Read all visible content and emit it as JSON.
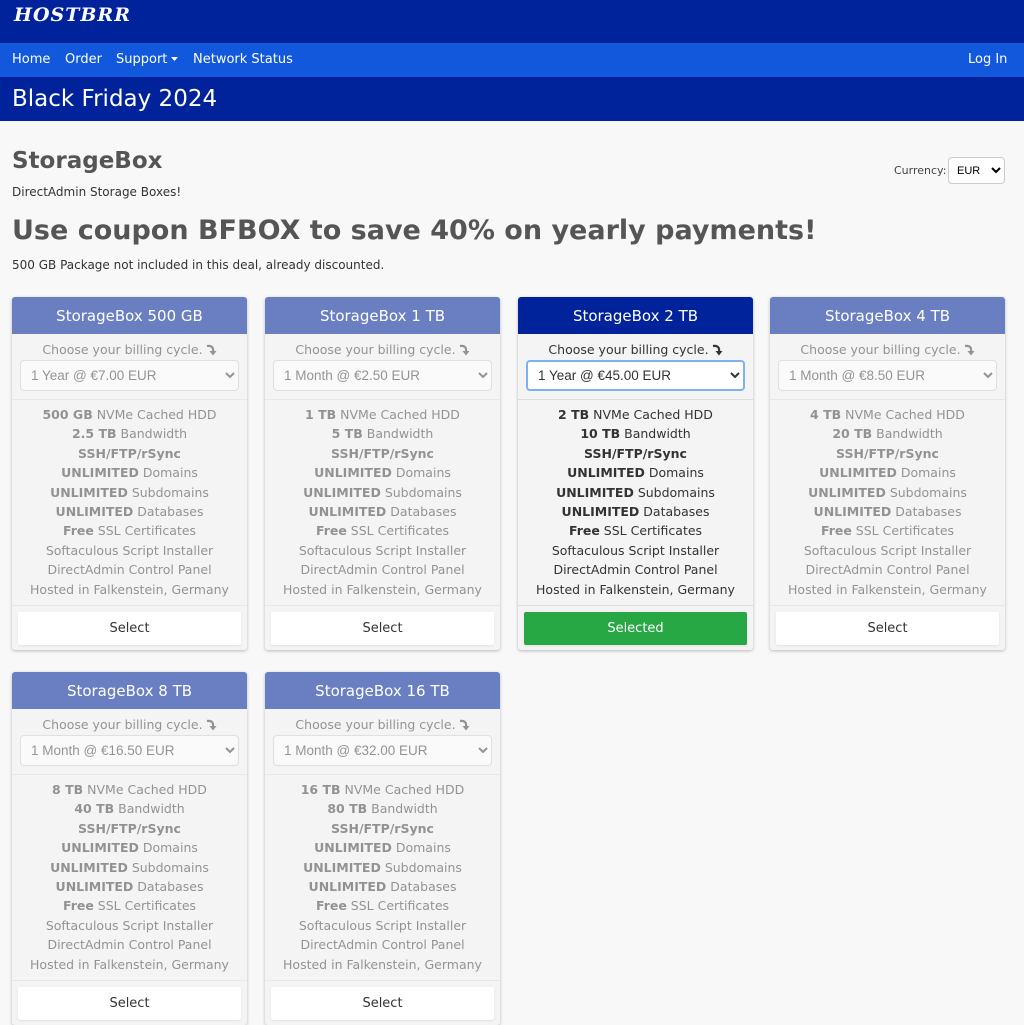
{
  "header": {
    "logo": "HOSTBRR",
    "nav": [
      "Home",
      "Order",
      "Support",
      "Network Status"
    ],
    "login": "Log In",
    "banner": "Black Friday 2024"
  },
  "section": {
    "title": "StorageBox",
    "subtitle": "DirectAdmin Storage Boxes!",
    "currency_label": "Currency:",
    "currency": "EUR",
    "headline": "Use coupon BFBOX to save 40% on yearly payments!",
    "note": "500 GB Package not included in this deal, already discounted."
  },
  "products": [
    {
      "name": "StorageBox 500 GB",
      "cycle_label": "Choose your billing cycle.",
      "cycle": "1 Year @ €7.00 EUR",
      "features": [
        {
          "bold": "500 GB",
          "text": "NVMe Cached HDD"
        },
        {
          "bold": "2.5 TB",
          "text": "Bandwidth"
        },
        {
          "bold": "SSH/FTP/rSync"
        },
        {
          "bold": "UNLIMITED",
          "text": "Domains"
        },
        {
          "bold": "UNLIMITED",
          "text": "Subdomains"
        },
        {
          "bold": "UNLIMITED",
          "text": "Databases"
        },
        {
          "bold": "Free",
          "text": "SSL Certificates"
        },
        {
          "text": "Softaculous Script Installer"
        },
        {
          "text": "DirectAdmin Control Panel"
        },
        {
          "text": "Hosted in Falkenstein, Germany"
        }
      ],
      "button": "Select",
      "selected": false
    },
    {
      "name": "StorageBox 1 TB",
      "cycle_label": "Choose your billing cycle.",
      "cycle": "1 Month @ €2.50 EUR",
      "features": [
        {
          "bold": "1 TB",
          "text": "NVMe Cached HDD"
        },
        {
          "bold": "5 TB",
          "text": "Bandwidth"
        },
        {
          "bold": "SSH/FTP/rSync"
        },
        {
          "bold": "UNLIMITED",
          "text": "Domains"
        },
        {
          "bold": "UNLIMITED",
          "text": "Subdomains"
        },
        {
          "bold": "UNLIMITED",
          "text": "Databases"
        },
        {
          "bold": "Free",
          "text": "SSL Certificates"
        },
        {
          "text": "Softaculous Script Installer"
        },
        {
          "text": "DirectAdmin Control Panel"
        },
        {
          "text": "Hosted in Falkenstein, Germany"
        }
      ],
      "button": "Select",
      "selected": false
    },
    {
      "name": "StorageBox 2 TB",
      "cycle_label": "Choose your billing cycle.",
      "cycle": "1 Year @ €45.00 EUR",
      "features": [
        {
          "bold": "2 TB",
          "text": "NVMe Cached HDD"
        },
        {
          "bold": "10 TB",
          "text": "Bandwidth"
        },
        {
          "bold": "SSH/FTP/rSync"
        },
        {
          "bold": "UNLIMITED",
          "text": "Domains"
        },
        {
          "bold": "UNLIMITED",
          "text": "Subdomains"
        },
        {
          "bold": "UNLIMITED",
          "text": "Databases"
        },
        {
          "bold": "Free",
          "text": "SSL Certificates"
        },
        {
          "text": "Softaculous Script Installer"
        },
        {
          "text": "DirectAdmin Control Panel"
        },
        {
          "text": "Hosted in Falkenstein, Germany"
        }
      ],
      "button": "Selected",
      "selected": true
    },
    {
      "name": "StorageBox 4 TB",
      "cycle_label": "Choose your billing cycle.",
      "cycle": "1 Month @ €8.50 EUR",
      "features": [
        {
          "bold": "4 TB",
          "text": "NVMe Cached HDD"
        },
        {
          "bold": "20 TB",
          "text": "Bandwidth"
        },
        {
          "bold": "SSH/FTP/rSync"
        },
        {
          "bold": "UNLIMITED",
          "text": "Domains"
        },
        {
          "bold": "UNLIMITED",
          "text": "Subdomains"
        },
        {
          "bold": "UNLIMITED",
          "text": "Databases"
        },
        {
          "bold": "Free",
          "text": "SSL Certificates"
        },
        {
          "text": "Softaculous Script Installer"
        },
        {
          "text": "DirectAdmin Control Panel"
        },
        {
          "text": "Hosted in Falkenstein, Germany"
        }
      ],
      "button": "Select",
      "selected": false
    },
    {
      "name": "StorageBox 8 TB",
      "cycle_label": "Choose your billing cycle.",
      "cycle": "1 Month @ €16.50 EUR",
      "features": [
        {
          "bold": "8 TB",
          "text": "NVMe Cached HDD"
        },
        {
          "bold": "40 TB",
          "text": "Bandwidth"
        },
        {
          "bold": "SSH/FTP/rSync"
        },
        {
          "bold": "UNLIMITED",
          "text": "Domains"
        },
        {
          "bold": "UNLIMITED",
          "text": "Subdomains"
        },
        {
          "bold": "UNLIMITED",
          "text": "Databases"
        },
        {
          "bold": "Free",
          "text": "SSL Certificates"
        },
        {
          "text": "Softaculous Script Installer"
        },
        {
          "text": "DirectAdmin Control Panel"
        },
        {
          "text": "Hosted in Falkenstein, Germany"
        }
      ],
      "button": "Select",
      "selected": false
    },
    {
      "name": "StorageBox 16 TB",
      "cycle_label": "Choose your billing cycle.",
      "cycle": "1 Month @ €32.00 EUR",
      "features": [
        {
          "bold": "16 TB",
          "text": "NVMe Cached HDD"
        },
        {
          "bold": "80 TB",
          "text": "Bandwidth"
        },
        {
          "bold": "SSH/FTP/rSync"
        },
        {
          "bold": "UNLIMITED",
          "text": "Domains"
        },
        {
          "bold": "UNLIMITED",
          "text": "Subdomains"
        },
        {
          "bold": "UNLIMITED",
          "text": "Databases"
        },
        {
          "bold": "Free",
          "text": "SSL Certificates"
        },
        {
          "text": "Softaculous Script Installer"
        },
        {
          "text": "DirectAdmin Control Panel"
        },
        {
          "text": "Hosted in Falkenstein, Germany"
        }
      ],
      "button": "Select",
      "selected": false
    }
  ]
}
